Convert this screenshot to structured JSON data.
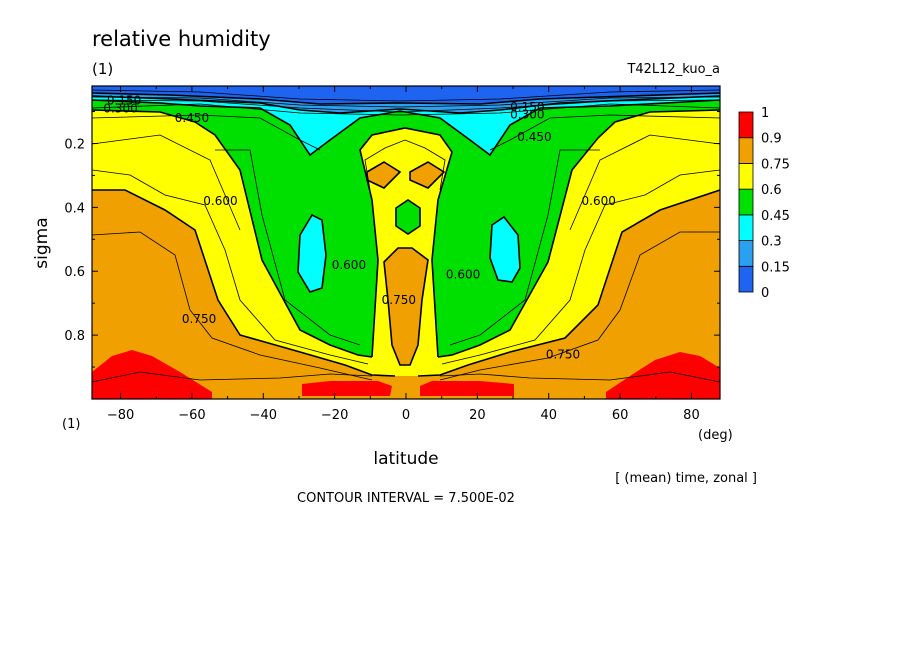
{
  "header": {
    "title": "relative humidity",
    "panel_id_top": "(1)",
    "run_name": "T42L12_kuo_a",
    "panel_id_bottom": "(1)"
  },
  "footer": {
    "averaging": "[ (mean) time, zonal ]",
    "contour_interval": "CONTOUR INTERVAL = 7.500E-02"
  },
  "chart_data": {
    "type": "heatmap",
    "title": "relative humidity",
    "xlabel": "latitude",
    "xunit": "(deg)",
    "ylabel": "sigma",
    "xlim": [
      -88,
      88
    ],
    "ylim": [
      1.0,
      0.02
    ],
    "y_inverted": true,
    "xticks": [
      -80,
      -60,
      -40,
      -20,
      0,
      20,
      40,
      60,
      80
    ],
    "xtick_labels": [
      "−80",
      "−60",
      "−40",
      "−20",
      "0",
      "20",
      "40",
      "60",
      "80"
    ],
    "yticks": [
      0.2,
      0.4,
      0.6,
      0.8
    ],
    "ytick_labels": [
      "0.2",
      "0.4",
      "0.6",
      "0.8"
    ],
    "contour_interval": 0.075,
    "colorbar": {
      "levels": [
        "0",
        "0.15",
        "0.3",
        "0.45",
        "0.6",
        "0.75",
        "0.9",
        "1"
      ],
      "colors": [
        "#1e64f0",
        "#2aa0f0",
        "#00ffff",
        "#00e000",
        "#ffff00",
        "#f0a000",
        "#ff0000"
      ]
    },
    "contour_labels": [
      {
        "text": "0.150",
        "lat": -79,
        "sigma": 0.065
      },
      {
        "text": "0.300",
        "lat": -80,
        "sigma": 0.09
      },
      {
        "text": "0.450",
        "lat": -60,
        "sigma": 0.12
      },
      {
        "text": "0.150",
        "lat": 34,
        "sigma": 0.085
      },
      {
        "text": "0.300",
        "lat": 34,
        "sigma": 0.11
      },
      {
        "text": "0.450",
        "lat": 36,
        "sigma": 0.18
      },
      {
        "text": "0.600",
        "lat": -52,
        "sigma": 0.38
      },
      {
        "text": "0.600",
        "lat": 54,
        "sigma": 0.38
      },
      {
        "text": "0.600",
        "lat": -16,
        "sigma": 0.58
      },
      {
        "text": "0.750",
        "lat": -2,
        "sigma": 0.69
      },
      {
        "text": "0.600",
        "lat": 16,
        "sigma": 0.61
      },
      {
        "text": "0.750",
        "lat": -58,
        "sigma": 0.75
      },
      {
        "text": "0.750",
        "lat": 44,
        "sigma": 0.86
      }
    ]
  }
}
